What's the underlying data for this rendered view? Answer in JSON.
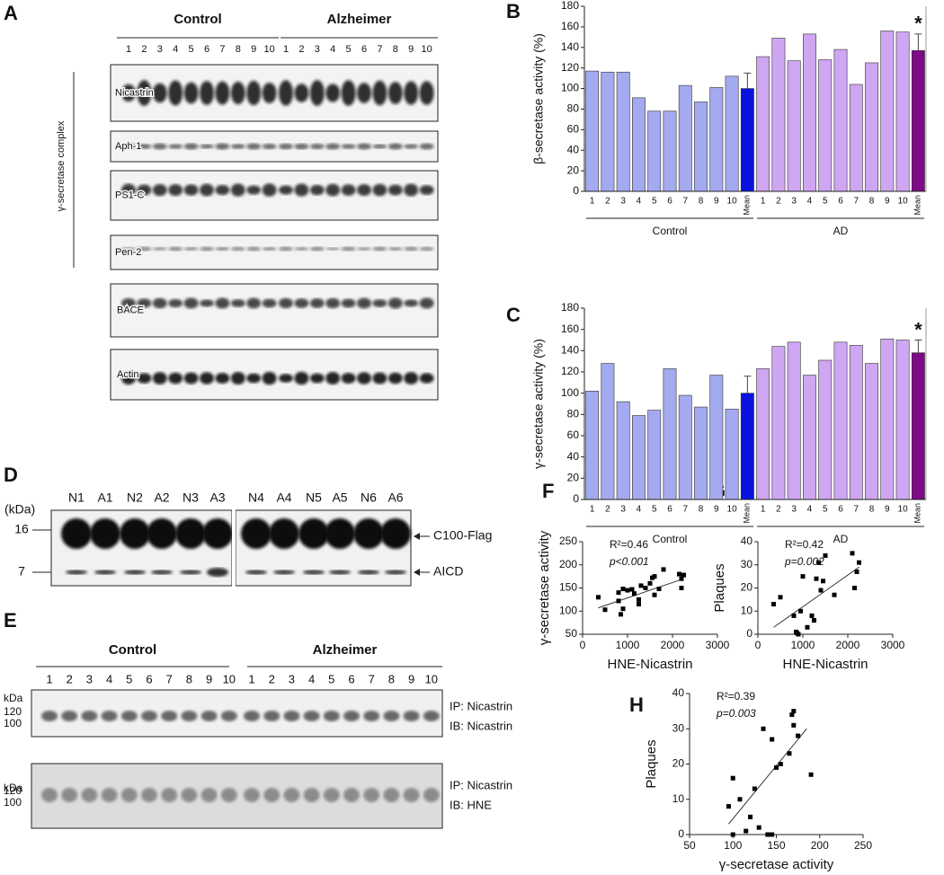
{
  "panels": [
    "A",
    "B",
    "C",
    "D",
    "E",
    "F",
    "G",
    "H"
  ],
  "blot_a": {
    "groups": [
      "Control",
      "Alzheimer"
    ],
    "lanes": [
      "1",
      "2",
      "3",
      "4",
      "5",
      "6",
      "7",
      "8",
      "9",
      "10"
    ],
    "complex_label": "γ-secretase complex",
    "rows": [
      "Nicastrin",
      "Aph-1",
      "PS1-C",
      "Pen-2",
      "BACE",
      "Actin"
    ]
  },
  "blot_d": {
    "unit": "(kDa)",
    "markers": [
      "16",
      "7"
    ],
    "lanes": [
      "N1",
      "A1",
      "N2",
      "A2",
      "N3",
      "A3",
      "N4",
      "A4",
      "N5",
      "A5",
      "N6",
      "A6"
    ],
    "bands": [
      "C100-Flag",
      "AICD"
    ]
  },
  "blot_e": {
    "groups": [
      "Control",
      "Alzheimer"
    ],
    "lanes": [
      "1",
      "2",
      "3",
      "4",
      "5",
      "6",
      "7",
      "8",
      "9",
      "10"
    ],
    "blots": [
      {
        "unit": "kDa",
        "markers": [
          "120",
          "100"
        ],
        "ip": "IP: Nicastrin",
        "ib": "IB: Nicastrin"
      },
      {
        "unit": "kDa",
        "markers": [
          "120",
          "100"
        ],
        "ip": "IP: Nicastrin",
        "ib": "IB: HNE"
      }
    ]
  },
  "chart_data": [
    {
      "type": "bar",
      "ylabel": "β-secretase activity (%)",
      "categories": [
        "1",
        "2",
        "3",
        "4",
        "5",
        "6",
        "7",
        "8",
        "9",
        "10",
        "Mean",
        "1",
        "2",
        "3",
        "4",
        "5",
        "6",
        "7",
        "8",
        "9",
        "10",
        "Mean"
      ],
      "series": [
        {
          "name": "Control",
          "color": "#a4aaf0",
          "mean_color": "#0b12e0",
          "values": [
            117,
            116,
            116,
            91,
            78,
            78,
            103,
            87,
            101,
            112,
            100,
            null,
            null,
            null,
            null,
            null,
            null,
            null,
            null,
            null,
            null,
            null
          ]
        },
        {
          "name": "AD",
          "color": "#cfa6f2",
          "mean_color": "#7d0a86",
          "values": [
            null,
            null,
            null,
            null,
            null,
            null,
            null,
            null,
            null,
            null,
            null,
            131,
            149,
            127,
            153,
            128,
            138,
            104,
            125,
            156,
            155,
            137
          ]
        }
      ],
      "errors": [
        null,
        null,
        null,
        null,
        null,
        null,
        null,
        null,
        null,
        null,
        15,
        null,
        null,
        null,
        null,
        null,
        null,
        null,
        null,
        null,
        null,
        16
      ],
      "annotation": "*",
      "ylim": [
        0,
        180
      ],
      "yticks": [
        0,
        20,
        40,
        60,
        80,
        100,
        120,
        140,
        160,
        180
      ]
    },
    {
      "type": "bar",
      "ylabel": "γ-secretase activity (%)",
      "categories": [
        "1",
        "2",
        "3",
        "4",
        "5",
        "6",
        "7",
        "8",
        "9",
        "10",
        "Mean",
        "1",
        "2",
        "3",
        "4",
        "5",
        "6",
        "7",
        "8",
        "9",
        "10",
        "Mean"
      ],
      "series": [
        {
          "name": "Control",
          "color": "#a4aaf0",
          "mean_color": "#0b12e0",
          "values": [
            102,
            128,
            92,
            79,
            84,
            123,
            98,
            87,
            117,
            85,
            100,
            null,
            null,
            null,
            null,
            null,
            null,
            null,
            null,
            null,
            null,
            null
          ]
        },
        {
          "name": "AD",
          "color": "#cfa6f2",
          "mean_color": "#7d0a86",
          "values": [
            null,
            null,
            null,
            null,
            null,
            null,
            null,
            null,
            null,
            null,
            null,
            123,
            144,
            148,
            117,
            131,
            148,
            145,
            128,
            151,
            150,
            138
          ]
        }
      ],
      "errors": [
        null,
        null,
        null,
        null,
        null,
        null,
        null,
        null,
        null,
        null,
        16,
        null,
        null,
        null,
        null,
        null,
        null,
        null,
        null,
        null,
        null,
        12
      ],
      "annotation": "*",
      "ylim": [
        0,
        180
      ],
      "yticks": [
        0,
        20,
        40,
        60,
        80,
        100,
        120,
        140,
        160,
        180
      ]
    },
    {
      "type": "scatter",
      "xlabel": "HNE-Nicastrin",
      "ylabel": "γ-secretase activity",
      "color": "#000000",
      "x": [
        350,
        500,
        800,
        850,
        900,
        800,
        900,
        1000,
        1100,
        1150,
        1250,
        1250,
        1300,
        1400,
        1500,
        1550,
        1600,
        1800,
        1600,
        1700,
        2200,
        2200,
        2250,
        2150
      ],
      "y": [
        130,
        103,
        122,
        93,
        105,
        140,
        148,
        145,
        147,
        138,
        115,
        125,
        155,
        150,
        160,
        172,
        175,
        190,
        135,
        148,
        150,
        170,
        178,
        180
      ],
      "trendline": {
        "x": [
          350,
          2250
        ],
        "y": [
          107,
          170
        ]
      },
      "annotations": [
        "R²=0.46",
        "p<0.001"
      ],
      "xlim": [
        0,
        3000
      ],
      "xticks": [
        0,
        1000,
        2000,
        3000
      ],
      "ylim": [
        50,
        250
      ],
      "yticks": [
        50,
        100,
        150,
        200,
        250
      ]
    },
    {
      "type": "scatter",
      "xlabel": "HNE-Nicastrin",
      "ylabel": "Plaques",
      "color": "#000000",
      "x": [
        350,
        500,
        800,
        850,
        870,
        900,
        950,
        1000,
        1100,
        1200,
        1250,
        1300,
        1350,
        1400,
        1450,
        1500,
        1700,
        2100,
        2150,
        2200,
        2250
      ],
      "y": [
        13,
        16,
        8,
        1,
        0.5,
        0,
        10,
        25,
        3,
        8,
        6,
        24,
        31,
        19,
        23,
        34,
        17,
        35,
        20,
        27,
        31
      ],
      "trendline": {
        "x": [
          350,
          2250
        ],
        "y": [
          3,
          29
        ]
      },
      "annotations": [
        "R²=0.42",
        "p=0.002"
      ],
      "xlim": [
        0,
        3000
      ],
      "xticks": [
        0,
        1000,
        2000,
        3000
      ],
      "ylim": [
        0,
        40
      ],
      "yticks": [
        0,
        10,
        20,
        30,
        40
      ]
    },
    {
      "type": "scatter",
      "xlabel": "γ-secretase activity",
      "ylabel": "Plaques",
      "color": "#000000",
      "x": [
        95,
        100,
        100,
        108,
        115,
        120,
        125,
        130,
        135,
        140,
        145,
        145,
        150,
        155,
        165,
        168,
        170,
        170,
        175,
        190
      ],
      "y": [
        8,
        16,
        0,
        10,
        1,
        5,
        13,
        2,
        30,
        0,
        0,
        27,
        19,
        20,
        23,
        34,
        31,
        35,
        28,
        17
      ],
      "trendline": {
        "x": [
          95,
          185
        ],
        "y": [
          3,
          30
        ]
      },
      "annotations": [
        "R²=0.39",
        "p=0.003"
      ],
      "xlim": [
        50,
        250
      ],
      "xticks": [
        50,
        100,
        150,
        200,
        250
      ],
      "ylim": [
        0,
        40
      ],
      "yticks": [
        0,
        10,
        20,
        30,
        40
      ]
    }
  ]
}
